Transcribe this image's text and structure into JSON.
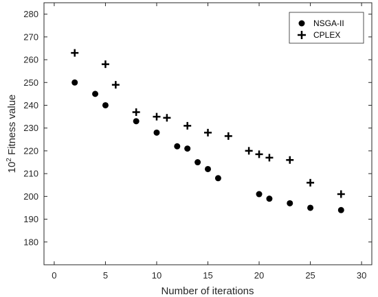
{
  "chart_data": {
    "type": "scatter",
    "title": "",
    "xlabel": "Number of iterations",
    "ylabel_base": "10",
    "ylabel_exp": "2",
    "ylabel_rest": " Fitness value",
    "xlim": [
      -1,
      31
    ],
    "ylim": [
      170,
      285
    ],
    "xticks": [
      0,
      5,
      10,
      15,
      20,
      25,
      30
    ],
    "yticks": [
      180,
      190,
      200,
      210,
      220,
      230,
      240,
      250,
      260,
      270,
      280
    ],
    "grid": false,
    "legend_position": "top-right",
    "series": [
      {
        "name": "NSGA-II",
        "marker": "circle",
        "color": "#000000",
        "x": [
          2,
          4,
          5,
          8,
          10,
          12,
          13,
          14,
          15,
          16,
          20,
          21,
          23,
          25,
          28
        ],
        "y": [
          250,
          245,
          240,
          233,
          228,
          222,
          221,
          215,
          212,
          208,
          201,
          199,
          197,
          195,
          194
        ]
      },
      {
        "name": "CPLEX",
        "marker": "plus",
        "color": "#000000",
        "x": [
          2,
          5,
          6,
          8,
          10,
          11,
          13,
          15,
          17,
          19,
          20,
          21,
          23,
          25,
          28
        ],
        "y": [
          263,
          258,
          249,
          237,
          235,
          234.5,
          231,
          228,
          226.5,
          220,
          218.5,
          217,
          216,
          206,
          201
        ]
      }
    ]
  }
}
